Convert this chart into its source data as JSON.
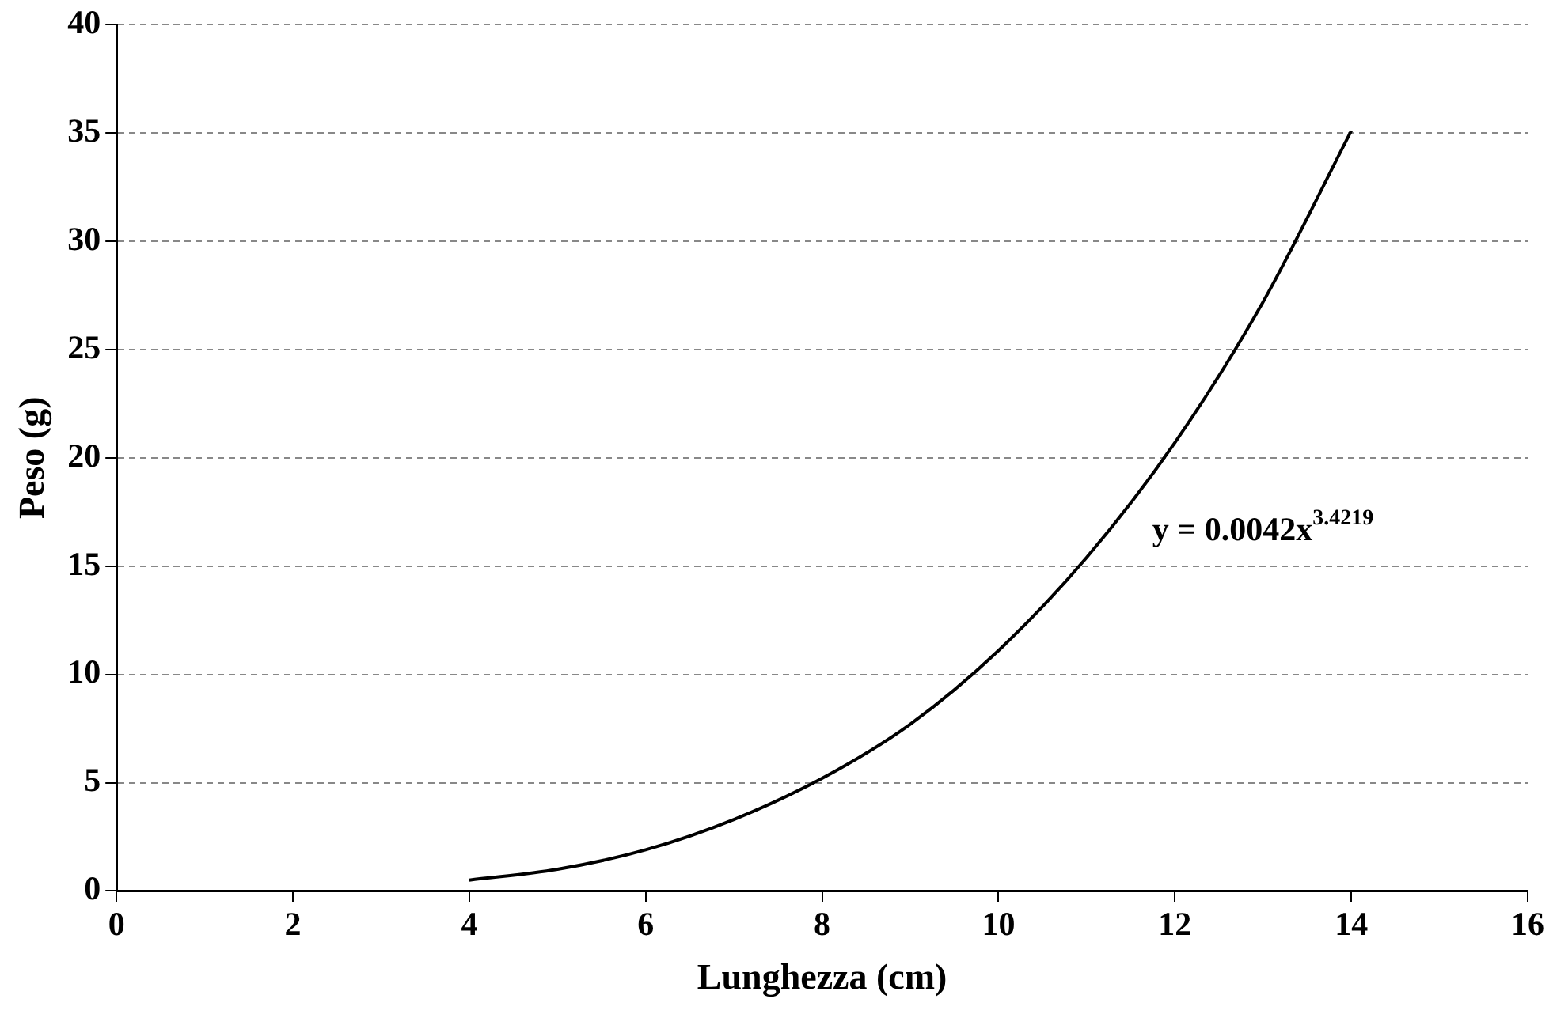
{
  "chart_data": {
    "type": "line",
    "xlabel": "Lunghezza (cm)",
    "ylabel": "Peso (g)",
    "series": [
      {
        "color": "#000000",
        "x": [
          4,
          5,
          6,
          7,
          8,
          9,
          10,
          11,
          12,
          13,
          14
        ],
        "values": [
          0.5,
          1.0,
          1.9,
          3.3,
          5.2,
          7.7,
          11.1,
          15.4,
          20.7,
          27.2,
          35.1
        ]
      }
    ],
    "xlim": [
      0,
      16
    ],
    "xticks": [
      0,
      2,
      4,
      6,
      8,
      10,
      12,
      14,
      16
    ],
    "ylim": [
      0,
      40
    ],
    "yticks": [
      0,
      5,
      10,
      15,
      20,
      25,
      30,
      35,
      40
    ],
    "grid": "y",
    "legend": false,
    "marker": "none",
    "line_style": "solid",
    "annotations": [
      "y = 0.0042x$^{3.4219}$"
    ]
  }
}
